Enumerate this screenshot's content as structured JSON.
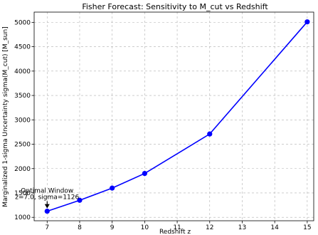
{
  "chart_data": {
    "type": "line",
    "title": "Fisher Forecast: Sensitivity to M_cut vs Redshift",
    "xlabel": "Redshift z",
    "ylabel": "Marginalized 1-sigma Uncertainty sigma(M_cut) [M_sun]",
    "x": [
      7,
      8,
      9,
      10,
      12,
      15
    ],
    "series": [
      {
        "values": [
          1126,
          1350,
          1600,
          1900,
          2710,
          5010
        ]
      }
    ],
    "xlim": [
      6.6,
      15.2
    ],
    "ylim": [
      930,
      5210
    ],
    "xticks": [
      7,
      8,
      9,
      10,
      11,
      12,
      13,
      14,
      15
    ],
    "yticks": [
      1000,
      1500,
      2000,
      2500,
      3000,
      3500,
      4000,
      4500,
      5000
    ],
    "grid": true,
    "line_color": "#0000ff",
    "annotation": {
      "line1": "Optimal Window",
      "line2": "z=7.0, sigma=1126",
      "x": 7,
      "y": 1126
    }
  }
}
